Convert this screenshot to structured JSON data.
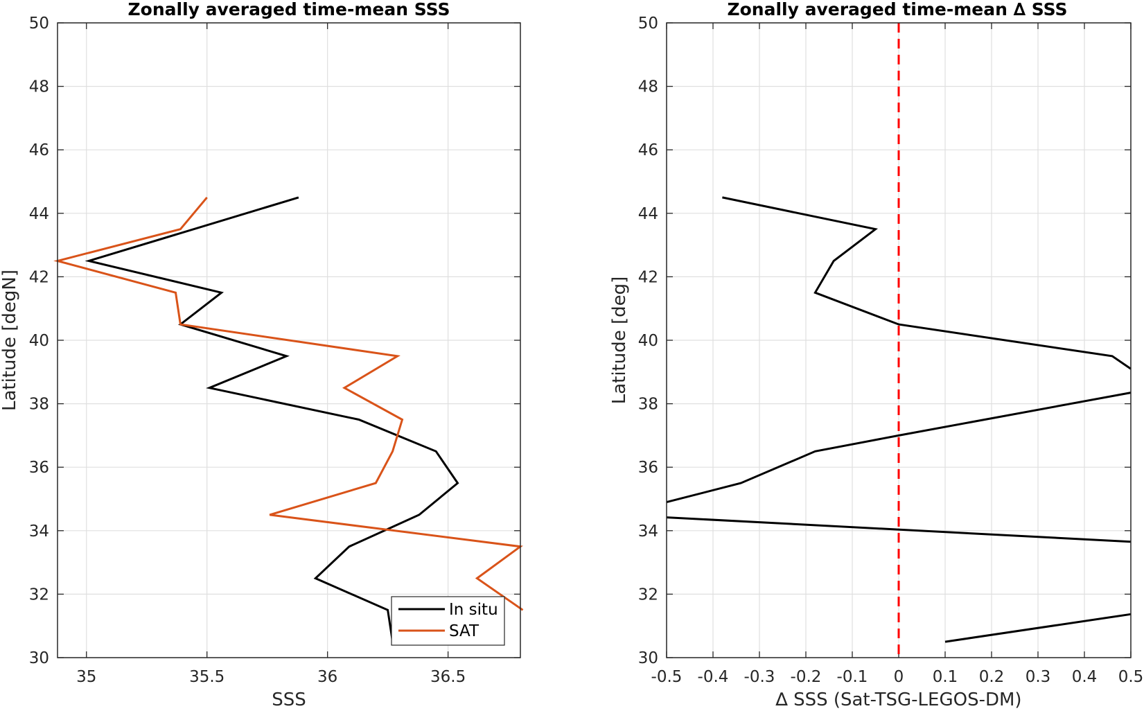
{
  "chart_data": [
    {
      "type": "line",
      "title": "Zonally averaged time-mean SSS",
      "xlabel": "SSS",
      "ylabel": "Latitude [degN]",
      "xlim": [
        34.88,
        36.8
      ],
      "ylim": [
        30,
        50
      ],
      "xticks": [
        35,
        35.5,
        36,
        36.5
      ],
      "xtick_labels": [
        "35",
        "35.5",
        "36",
        "36.5"
      ],
      "yticks": [
        30,
        32,
        34,
        36,
        38,
        40,
        42,
        44,
        46,
        48,
        50
      ],
      "ytick_labels": [
        "30",
        "32",
        "34",
        "36",
        "38",
        "40",
        "42",
        "44",
        "46",
        "48",
        "50"
      ],
      "grid": true,
      "legend": {
        "position": "bottom-right",
        "entries": [
          "In situ",
          "SAT"
        ]
      },
      "series": [
        {
          "name": "In situ",
          "color": "#000000",
          "points": [
            [
              35.88,
              44.5
            ],
            [
              35.01,
              42.5
            ],
            [
              35.56,
              41.5
            ],
            [
              35.39,
              40.5
            ],
            [
              35.83,
              39.5
            ],
            [
              35.51,
              38.5
            ],
            [
              36.13,
              37.5
            ],
            [
              36.45,
              36.5
            ],
            [
              36.54,
              35.5
            ],
            [
              36.38,
              34.5
            ],
            [
              36.09,
              33.5
            ],
            [
              35.95,
              32.5
            ],
            [
              36.25,
              31.5
            ],
            [
              36.27,
              30.5
            ]
          ]
        },
        {
          "name": "SAT",
          "color": "#d95319",
          "points": [
            [
              35.5,
              44.5
            ],
            [
              35.39,
              43.5
            ],
            [
              34.88,
              42.5
            ],
            [
              35.37,
              41.5
            ],
            [
              35.39,
              40.5
            ],
            [
              36.29,
              39.5
            ],
            [
              36.07,
              38.5
            ],
            [
              36.31,
              37.5
            ],
            [
              36.27,
              36.5
            ],
            [
              36.2,
              35.5
            ],
            [
              35.76,
              34.5
            ],
            [
              36.8,
              33.5
            ],
            [
              36.62,
              32.5
            ],
            [
              36.81,
              31.5
            ]
          ]
        }
      ]
    },
    {
      "type": "line",
      "title": "Zonally averaged time-mean ∆ SSS",
      "xlabel": "∆ SSS (Sat-TSG-LEGOS-DM)",
      "ylabel": "Latitude [deg]",
      "xlim": [
        -0.5,
        0.5
      ],
      "ylim": [
        30,
        50
      ],
      "xticks": [
        -0.5,
        -0.4,
        -0.3,
        -0.2,
        -0.1,
        0,
        0.1,
        0.2,
        0.3,
        0.4,
        0.5
      ],
      "xtick_labels": [
        "-0.5",
        "-0.4",
        "-0.3",
        "-0.2",
        "-0.1",
        "0",
        "0.1",
        "0.2",
        "0.3",
        "0.4",
        "0.5"
      ],
      "yticks": [
        30,
        32,
        34,
        36,
        38,
        40,
        42,
        44,
        46,
        48,
        50
      ],
      "ytick_labels": [
        "30",
        "32",
        "34",
        "36",
        "38",
        "40",
        "42",
        "44",
        "46",
        "48",
        "50"
      ],
      "grid": true,
      "reference_line": {
        "x": 0,
        "color": "#ff0000",
        "style": "dashed"
      },
      "series": [
        {
          "color": "#000000",
          "points": [
            [
              -0.38,
              44.5
            ],
            [
              -0.05,
              43.5
            ],
            [
              -0.14,
              42.5
            ],
            [
              -0.18,
              41.5
            ],
            [
              0.0,
              40.5
            ],
            [
              0.46,
              39.5
            ],
            [
              0.5,
              39.1
            ]
          ]
        },
        {
          "color": "#000000",
          "points": [
            [
              0.5,
              38.35
            ],
            [
              0.0,
              37.0
            ],
            [
              -0.18,
              36.5
            ],
            [
              -0.34,
              35.5
            ],
            [
              -0.5,
              34.9
            ]
          ]
        },
        {
          "color": "#000000",
          "points": [
            [
              -0.5,
              34.42
            ],
            [
              0.5,
              33.65
            ]
          ]
        },
        {
          "color": "#000000",
          "points": [
            [
              0.1,
              30.5
            ],
            [
              0.5,
              31.37
            ]
          ]
        }
      ]
    }
  ]
}
